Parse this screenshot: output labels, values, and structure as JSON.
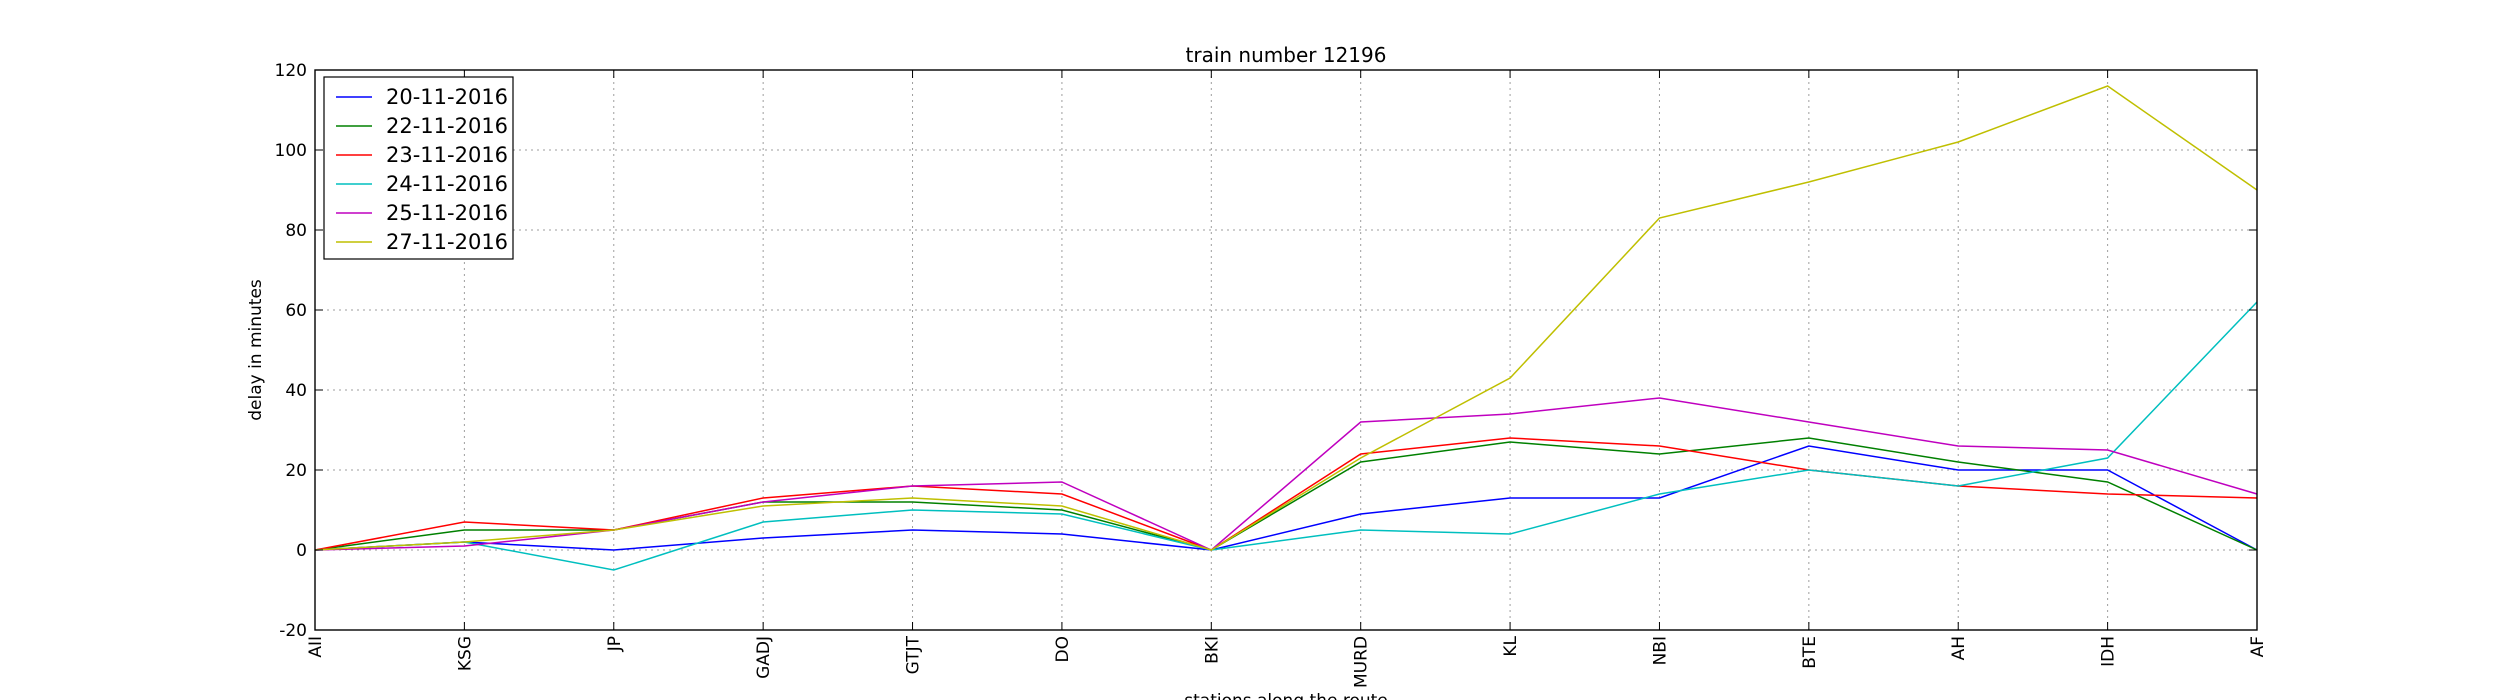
{
  "chart_data": {
    "type": "line",
    "title": "train number 12196",
    "xlabel": "stations along the route",
    "ylabel": "delay in minutes",
    "categories": [
      "AII",
      "KSG",
      "JP",
      "GADJ",
      "GTJT",
      "DO",
      "BKI",
      "MURD",
      "KL",
      "NBI",
      "BTE",
      "AH",
      "IDH",
      "AF"
    ],
    "ylim": [
      -20,
      120
    ],
    "yticks": [
      -20,
      0,
      20,
      40,
      60,
      80,
      100,
      120
    ],
    "grid": true,
    "legend_position": "top-left",
    "series": [
      {
        "name": "20-11-2016",
        "color": "#0000ff",
        "values": [
          0,
          2,
          0,
          3,
          5,
          4,
          0,
          9,
          13,
          13,
          26,
          20,
          20,
          0
        ]
      },
      {
        "name": "22-11-2016",
        "color": "#008000",
        "values": [
          0,
          5,
          5,
          12,
          12,
          10,
          0,
          22,
          27,
          24,
          28,
          22,
          17,
          0
        ]
      },
      {
        "name": "23-11-2016",
        "color": "#ff0000",
        "values": [
          0,
          7,
          5,
          13,
          16,
          14,
          0,
          24,
          28,
          26,
          20,
          16,
          14,
          13
        ]
      },
      {
        "name": "24-11-2016",
        "color": "#00bfbf",
        "values": [
          0,
          2,
          -5,
          7,
          10,
          9,
          0,
          5,
          4,
          14,
          20,
          16,
          23,
          62
        ]
      },
      {
        "name": "25-11-2016",
        "color": "#bf00bf",
        "values": [
          0,
          1,
          5,
          12,
          16,
          17,
          0,
          32,
          34,
          38,
          32,
          26,
          25,
          14
        ]
      },
      {
        "name": "27-11-2016",
        "color": "#bfbf00",
        "values": [
          0,
          2,
          5,
          11,
          13,
          11,
          0,
          23,
          43,
          83,
          92,
          102,
          116,
          90
        ]
      }
    ]
  }
}
